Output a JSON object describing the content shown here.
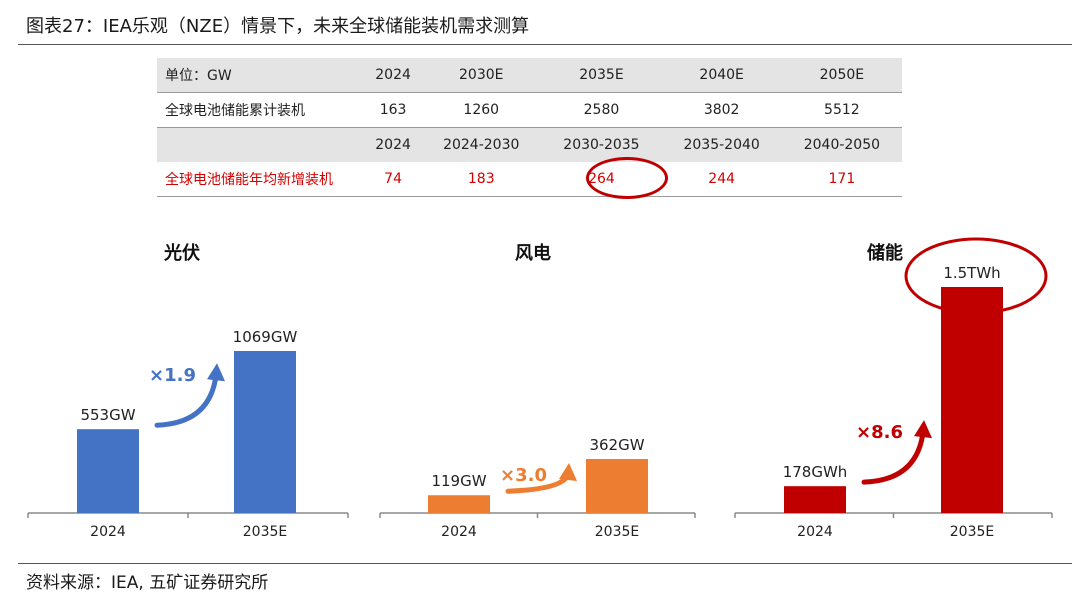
{
  "figure_title": "图表27：IEA乐观（NZE）情景下，未来全球储能装机需求测算",
  "source": "资料来源：IEA, 五矿证券研究所",
  "table": {
    "header1": [
      "单位：GW",
      "2024",
      "2030E",
      "2035E",
      "2040E",
      "2050E"
    ],
    "row1": [
      "全球电池储能累计装机",
      "163",
      "1260",
      "2580",
      "3802",
      "5512"
    ],
    "header2": [
      "",
      "2024",
      "2024-2030",
      "2030-2035",
      "2035-2040",
      "2040-2050"
    ],
    "row2": [
      "全球电池储能年均新增装机",
      "74",
      "183",
      "264",
      "244",
      "171"
    ],
    "highlight_color": "#d40000"
  },
  "chart_data": [
    {
      "type": "bar",
      "title": "光伏",
      "categories": [
        "2024",
        "2035E"
      ],
      "values": [
        553,
        1069
      ],
      "value_labels": [
        "553GW",
        "1069GW"
      ],
      "multiplier": "×1.9",
      "color": "#4472c4",
      "arrow_color": "#4472c4"
    },
    {
      "type": "bar",
      "title": "风电",
      "categories": [
        "2024",
        "2035E"
      ],
      "values": [
        119,
        362
      ],
      "value_labels": [
        "119GW",
        "362GW"
      ],
      "multiplier": "×3.0",
      "color": "#ed7d31",
      "arrow_color": "#ed7d31"
    },
    {
      "type": "bar",
      "title": "储能",
      "categories": [
        "2024",
        "2035E"
      ],
      "values": [
        178,
        1500
      ],
      "value_labels": [
        "178GWh",
        "1.5TWh"
      ],
      "multiplier": "×8.6",
      "color": "#c00000",
      "arrow_color": "#c00000"
    }
  ]
}
